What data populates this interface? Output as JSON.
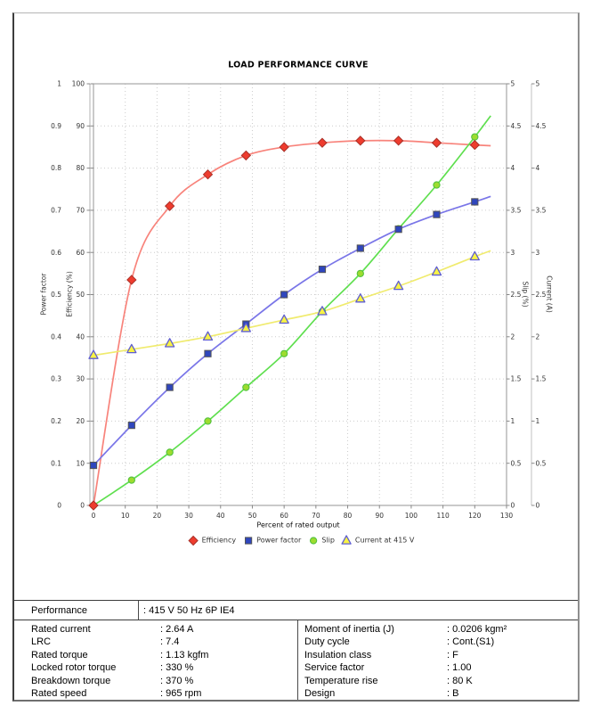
{
  "chart_data": {
    "type": "line",
    "title": "LOAD PERFORMANCE CURVE",
    "x_axis": {
      "title": "Percent of rated output",
      "range": [
        0,
        130
      ],
      "ticks": [
        "0",
        "10",
        "20",
        "30",
        "40",
        "50",
        "60",
        "70",
        "80",
        "90",
        "100",
        "110",
        "120",
        "130"
      ]
    },
    "axes": {
      "power_factor": {
        "title": "Power factor",
        "range": [
          0,
          1
        ],
        "ticks": [
          "0",
          "0.1",
          "0.2",
          "0.3",
          "0.4",
          "0.5",
          "0.6",
          "0.7",
          "0.8",
          "0.9",
          "1"
        ]
      },
      "efficiency": {
        "title": "Efficiency (%)",
        "range": [
          0,
          100
        ],
        "ticks": [
          "0",
          "10",
          "20",
          "30",
          "40",
          "50",
          "60",
          "70",
          "80",
          "90",
          "100"
        ]
      },
      "slip": {
        "title": "Slip (%)",
        "range": [
          0,
          5
        ],
        "ticks": [
          "0",
          "0.5",
          "1",
          "1.5",
          "2",
          "2.5",
          "3",
          "3.5",
          "4",
          "4.5",
          "5"
        ]
      },
      "current": {
        "title": "Current (A)",
        "range": [
          0,
          5
        ],
        "ticks": [
          "0",
          "0.5",
          "1",
          "1.5",
          "2",
          "2.5",
          "3",
          "3.5",
          "4",
          "4.5",
          "5"
        ]
      }
    },
    "x": [
      0,
      12,
      24,
      36,
      48,
      60,
      72,
      84,
      96,
      108,
      120
    ],
    "series": [
      {
        "name": "Efficiency",
        "axis": "efficiency",
        "marker": "diamond",
        "line_color": "#f8837b",
        "marker_fill": "#ee3c2e",
        "marker_stroke": "#a93028",
        "values": [
          0,
          53.5,
          71,
          78.5,
          83,
          85,
          86,
          86.5,
          86.5,
          86,
          85.5
        ],
        "line_end": {
          "x": 125,
          "value": 85.3
        }
      },
      {
        "name": "Power factor",
        "axis": "power_factor",
        "marker": "square",
        "line_color": "#7a76e8",
        "marker_fill": "#2f46bd",
        "marker_stroke": "#555555",
        "values": [
          0.095,
          0.19,
          0.28,
          0.36,
          0.43,
          0.5,
          0.56,
          0.61,
          0.655,
          0.69,
          0.72
        ],
        "line_end": {
          "x": 125,
          "value": 0.733
        }
      },
      {
        "name": "Slip",
        "axis": "slip",
        "marker": "circle",
        "line_color": "#5fdf4f",
        "marker_fill": "#9ddc2f",
        "marker_stroke": "#53c23e",
        "values": [
          0,
          0.3,
          0.63,
          1.0,
          1.4,
          1.8,
          2.3,
          2.75,
          3.28,
          3.8,
          4.37
        ],
        "line_end": {
          "x": 125,
          "value": 4.62
        }
      },
      {
        "name": "Current at 415 V",
        "axis": "current",
        "marker": "triangle",
        "line_color": "#f0eb6e",
        "marker_fill": "#f8f344",
        "marker_stroke": "#5f5ed1",
        "values": [
          1.78,
          1.85,
          1.92,
          2.0,
          2.1,
          2.2,
          2.3,
          2.45,
          2.6,
          2.77,
          2.95
        ],
        "line_end": {
          "x": 125,
          "value": 3.02
        }
      }
    ],
    "grid": {
      "color": "#cccccc",
      "style": "dotted",
      "on": true
    },
    "legend_position": "bottom"
  },
  "table": {
    "performance": {
      "label": "Performance",
      "value": ": 415 V 50 Hz 6P IE4"
    },
    "left_rows": [
      {
        "label": "Rated current",
        "value": ": 2.64 A"
      },
      {
        "label": "LRC",
        "value": ": 7.4"
      },
      {
        "label": "Rated torque",
        "value": ": 1.13 kgfm"
      },
      {
        "label": "Locked rotor torque",
        "value": ": 330 %"
      },
      {
        "label": "Breakdown torque",
        "value": ": 370 %"
      },
      {
        "label": "Rated speed",
        "value": ": 965 rpm"
      }
    ],
    "right_rows": [
      {
        "label": "Moment of inertia (J)",
        "value": ": 0.0206 kgm²"
      },
      {
        "label": "Duty cycle",
        "value": ": Cont.(S1)"
      },
      {
        "label": "Insulation class",
        "value": ": F"
      },
      {
        "label": "Service factor",
        "value": ": 1.00"
      },
      {
        "label": "Temperature rise",
        "value": ": 80 K"
      },
      {
        "label": "Design",
        "value": ": B"
      }
    ]
  }
}
